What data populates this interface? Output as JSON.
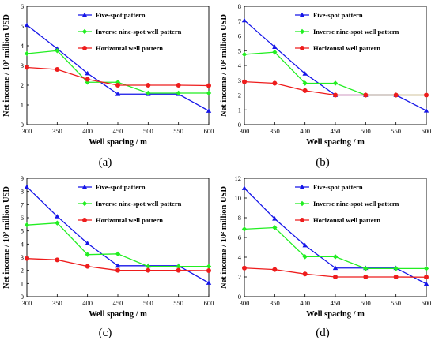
{
  "colors": {
    "five_spot": "#1515e8",
    "inverse_nine_spot": "#22ee22",
    "horizontal": "#ee1c1c",
    "axis": "#000000"
  },
  "chart_data": [
    {
      "type": "line",
      "panel_label": "(a)",
      "xlabel": "Well spacing / m",
      "ylabel": "Net income / 10² million USD",
      "x": [
        300,
        350,
        400,
        450,
        500,
        550,
        600
      ],
      "x_ticks": [
        "300",
        "350",
        "400",
        "450",
        "500",
        "550",
        "600"
      ],
      "xlim": [
        300,
        600
      ],
      "ylim": [
        0,
        6
      ],
      "y_ticks": [
        0,
        1,
        2,
        3,
        4,
        5,
        6
      ],
      "grid": false,
      "legend_position": "top-right",
      "series": [
        {
          "name": "Five-spot pattern",
          "values": [
            5.05,
            3.85,
            2.6,
            1.55,
            1.55,
            1.55,
            0.7
          ]
        },
        {
          "name": "Inverse nine-spot well pattern",
          "values": [
            3.6,
            3.75,
            2.15,
            2.15,
            1.6,
            1.6,
            1.6
          ]
        },
        {
          "name": "Horizontal well pattern",
          "values": [
            2.9,
            2.8,
            2.3,
            2.0,
            2.0,
            2.0,
            1.98
          ]
        }
      ]
    },
    {
      "type": "line",
      "panel_label": "(b)",
      "xlabel": "Well spacing / m",
      "ylabel": "Net income / 10² million USD",
      "x": [
        300,
        350,
        400,
        450,
        500,
        550,
        600
      ],
      "x_ticks": [
        "300",
        "350",
        "400",
        "450",
        "500",
        "550",
        "600"
      ],
      "xlim": [
        300,
        600
      ],
      "ylim": [
        0,
        8
      ],
      "y_ticks": [
        0,
        1,
        2,
        3,
        4,
        5,
        6,
        7,
        8
      ],
      "grid": false,
      "legend_position": "top-right",
      "series": [
        {
          "name": "Five-spot pattern",
          "values": [
            7.05,
            5.25,
            3.45,
            2.0,
            2.0,
            2.0,
            0.95
          ]
        },
        {
          "name": "Inverse nine-spot well pattern",
          "values": [
            4.75,
            4.9,
            2.8,
            2.8,
            2.0,
            2.0,
            2.0
          ]
        },
        {
          "name": "Horizontal well pattern",
          "values": [
            2.9,
            2.8,
            2.3,
            2.0,
            2.0,
            2.0,
            2.0
          ]
        }
      ]
    },
    {
      "type": "line",
      "panel_label": "(c)",
      "xlabel": "Well spacing / m",
      "ylabel": "Net income / 10² million USD",
      "x": [
        300,
        350,
        400,
        450,
        500,
        550,
        600
      ],
      "x_ticks": [
        "300",
        "350",
        "400",
        "450",
        "500",
        "550",
        "600"
      ],
      "xlim": [
        300,
        600
      ],
      "ylim": [
        0,
        9
      ],
      "y_ticks": [
        0,
        1,
        2,
        3,
        4,
        5,
        6,
        7,
        8,
        9
      ],
      "grid": false,
      "legend_position": "top-right",
      "series": [
        {
          "name": "Five-spot pattern",
          "values": [
            8.35,
            6.1,
            4.05,
            2.35,
            2.35,
            2.35,
            1.05
          ]
        },
        {
          "name": "Inverse nine-spot well pattern",
          "values": [
            5.45,
            5.6,
            3.2,
            3.25,
            2.3,
            2.3,
            2.3
          ]
        },
        {
          "name": "Horizontal well pattern",
          "values": [
            2.9,
            2.8,
            2.3,
            2.0,
            2.0,
            2.0,
            1.98
          ]
        }
      ]
    },
    {
      "type": "line",
      "panel_label": "(d)",
      "xlabel": "Well spacing / m",
      "ylabel": "Net income / 10² million USD",
      "x": [
        300,
        350,
        400,
        450,
        500,
        550,
        600
      ],
      "x_ticks": [
        "300",
        "350",
        "400",
        "450",
        "500",
        "550",
        "600"
      ],
      "xlim": [
        300,
        600
      ],
      "ylim": [
        0,
        12
      ],
      "y_ticks": [
        0,
        2,
        4,
        6,
        8,
        10,
        12
      ],
      "grid": false,
      "legend_position": "top-right",
      "series": [
        {
          "name": "Five-spot pattern",
          "values": [
            11.0,
            7.9,
            5.2,
            2.9,
            2.9,
            2.9,
            1.3
          ]
        },
        {
          "name": "Inverse nine-spot well pattern",
          "values": [
            6.85,
            7.0,
            4.05,
            4.05,
            2.85,
            2.85,
            2.85
          ]
        },
        {
          "name": "Horizontal well pattern",
          "values": [
            2.9,
            2.75,
            2.3,
            2.0,
            2.0,
            2.0,
            1.98
          ]
        }
      ]
    }
  ]
}
